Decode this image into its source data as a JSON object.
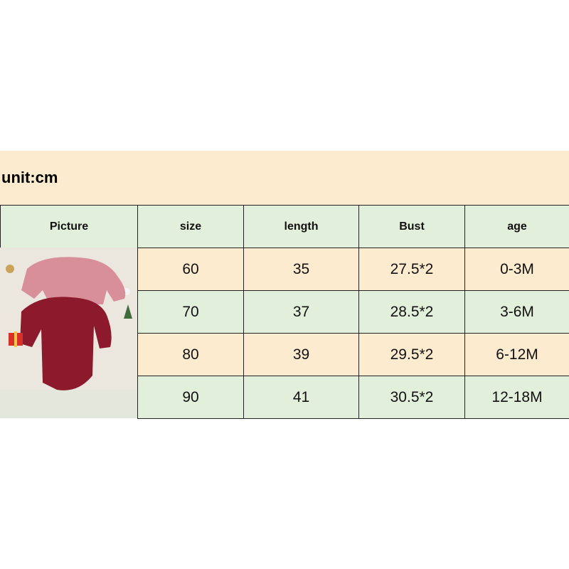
{
  "header": {
    "unit": "unit:cm"
  },
  "table": {
    "columns": [
      "Picture",
      "size",
      "length",
      "Bust",
      "age"
    ],
    "rows": [
      [
        "60",
        "35",
        "27.5*2",
        "0-3M"
      ],
      [
        "70",
        "37",
        "28.5*2",
        "3-6M"
      ],
      [
        "80",
        "39",
        "29.5*2",
        "6-12M"
      ],
      [
        "90",
        "41",
        "30.5*2",
        "12-18M"
      ]
    ]
  }
}
